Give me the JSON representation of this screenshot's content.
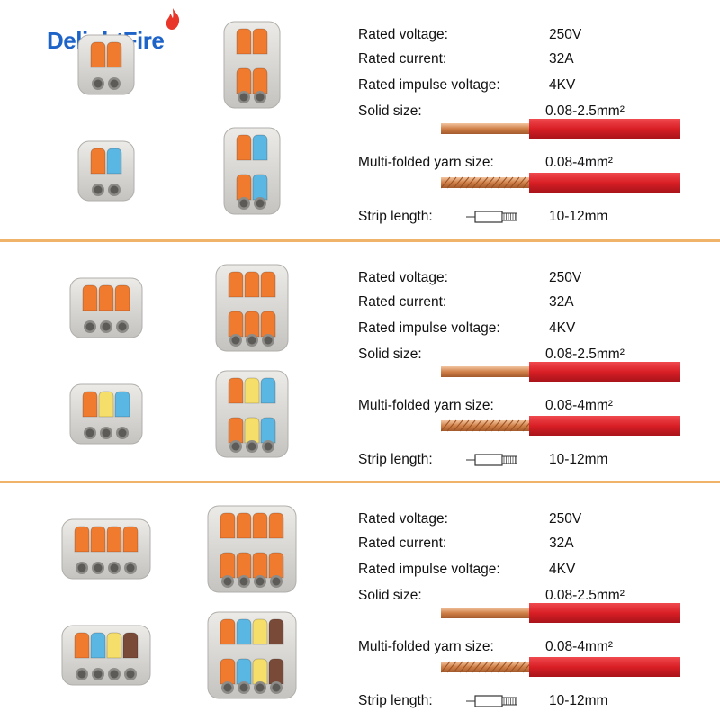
{
  "brand": {
    "logo_text": "DelightFire",
    "flame_icon": "flame-icon",
    "color": "#1e63c8"
  },
  "colors": {
    "divider": "#f0b36a",
    "wire_insulation": "#d91f26",
    "copper": "#d08048",
    "connector_body": "#d8d8d6",
    "lever_orange": "#f07a2e",
    "lever_blue": "#5ab6e2",
    "lever_yellow": "#f5de6a",
    "lever_brown": "#7a4a38"
  },
  "sections": [
    {
      "pole_count": 2,
      "connector_variants": [
        "2-pole small",
        "2-pole 2x2",
        "2-pole mixed",
        "2-pole 2x2 mixed"
      ],
      "specs": {
        "rated_voltage": {
          "label": "Rated voltage:",
          "value": "250V"
        },
        "rated_current": {
          "label": "Rated current:",
          "value": "32A"
        },
        "rated_impulse_voltage": {
          "label": "Rated impulse voltage:",
          "value": "4KV"
        },
        "solid_size": {
          "label": "Solid size:",
          "value": "0.08-2.5mm²"
        },
        "multi_folded": {
          "label": "Multi-folded yarn size:",
          "value": "0.08-4mm²"
        },
        "strip_length": {
          "label": "Strip length:",
          "value": "10-12mm"
        }
      }
    },
    {
      "pole_count": 3,
      "connector_variants": [
        "3-pole",
        "3-pole 3x3",
        "3-pole mixed",
        "3-pole 3x3 mixed"
      ],
      "specs": {
        "rated_voltage": {
          "label": "Rated voltage:",
          "value": "250V"
        },
        "rated_current": {
          "label": "Rated current:",
          "value": "32A"
        },
        "rated_impulse_voltage": {
          "label": "Rated impulse voltage:",
          "value": "4KV"
        },
        "solid_size": {
          "label": "Solid size:",
          "value": "0.08-2.5mm²"
        },
        "multi_folded": {
          "label": "Multi-folded yarn size:",
          "value": "0.08-4mm²"
        },
        "strip_length": {
          "label": "Strip length:",
          "value": "10-12mm"
        }
      }
    },
    {
      "pole_count": 4,
      "connector_variants": [
        "4-pole",
        "4-pole 4x4",
        "4-pole mixed",
        "4-pole 4x4 mixed"
      ],
      "specs": {
        "rated_voltage": {
          "label": "Rated voltage:",
          "value": "250V"
        },
        "rated_current": {
          "label": "Rated current:",
          "value": "32A"
        },
        "rated_impulse_voltage": {
          "label": "Rated impulse voltage:",
          "value": "4KV"
        },
        "solid_size": {
          "label": "Solid size:",
          "value": "0.08-2.5mm²"
        },
        "multi_folded": {
          "label": "Multi-folded yarn size:",
          "value": "0.08-4mm²"
        },
        "strip_length": {
          "label": "Strip length:",
          "value": "10-12mm"
        }
      }
    }
  ]
}
